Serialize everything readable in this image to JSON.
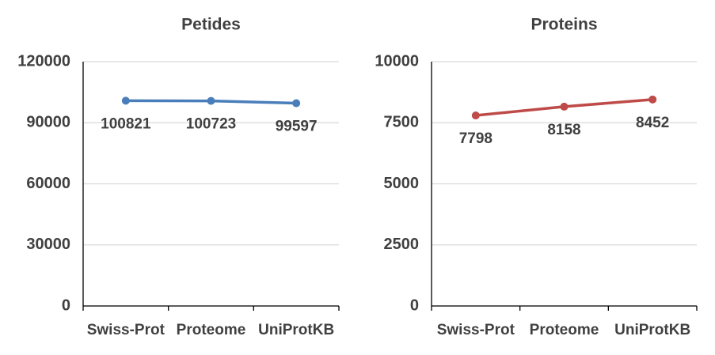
{
  "chart_data": [
    {
      "type": "line",
      "title": "Petides",
      "categories": [
        "Swiss-Prot",
        "Proteome",
        "UniProtKB"
      ],
      "series": [
        {
          "name": "Petides",
          "color": "#4a7ebb",
          "values": [
            100821,
            100723,
            99597
          ]
        }
      ],
      "ylim": [
        0,
        120000
      ],
      "yticks": [
        0,
        30000,
        60000,
        90000,
        120000
      ],
      "grid": true
    },
    {
      "type": "line",
      "title": "Proteins",
      "categories": [
        "Swiss-Prot",
        "Proteome",
        "UniProtKB"
      ],
      "series": [
        {
          "name": "Proteins",
          "color": "#be4b48",
          "values": [
            7798,
            8158,
            8452
          ]
        }
      ],
      "ylim": [
        0,
        10000
      ],
      "yticks": [
        0,
        2500,
        5000,
        7500,
        10000
      ],
      "grid": true
    }
  ]
}
